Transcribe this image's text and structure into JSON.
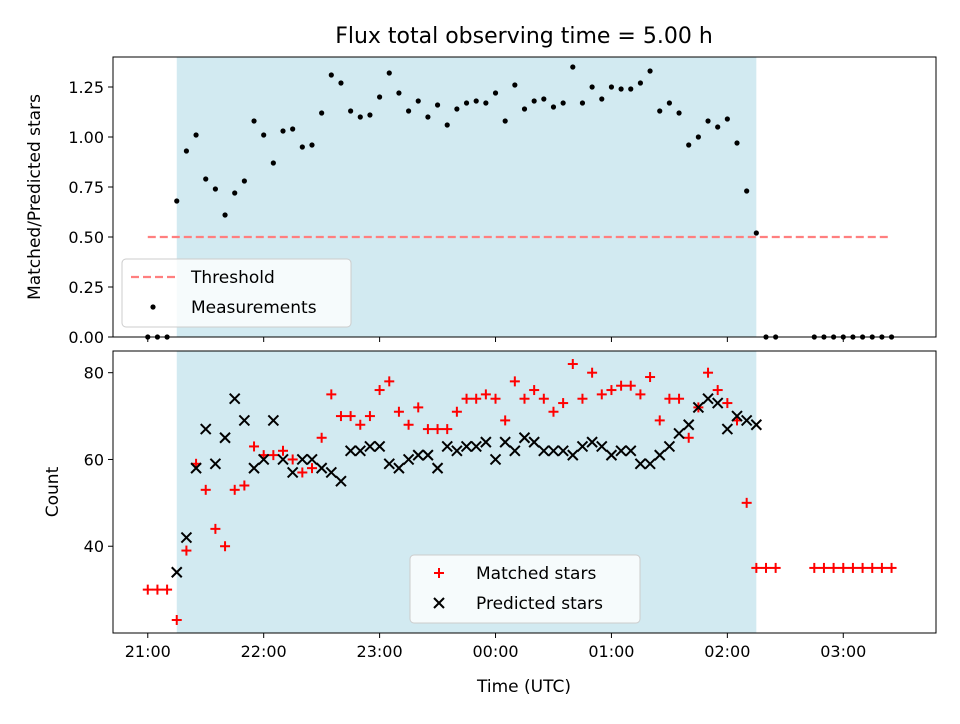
{
  "chart_data": [
    {
      "type": "scatter",
      "title": "Flux total observing time = 5.00 h",
      "xlabel": "",
      "ylabel": "Matched/Predicted stars",
      "ylim": [
        0,
        1.4
      ],
      "yticks": [
        "0.00",
        "0.25",
        "0.50",
        "0.75",
        "1.00",
        "1.25"
      ],
      "x_range": [
        "20:42",
        "03:48"
      ],
      "shaded_span": [
        "21:15",
        "02:15"
      ],
      "shade_color": "#add8e6",
      "threshold": {
        "name": "Threshold",
        "value": 0.5,
        "x": [
          "21:00",
          "03:25"
        ],
        "color": "#ff7f7f",
        "style": "dashed"
      },
      "series": [
        {
          "name": "Measurements",
          "color": "#000000",
          "points": [
            [
              "21:00",
              0.0
            ],
            [
              "21:05",
              0.0
            ],
            [
              "21:10",
              0.0
            ],
            [
              "21:15",
              0.68
            ],
            [
              "21:20",
              0.93
            ],
            [
              "21:25",
              1.01
            ],
            [
              "21:30",
              0.79
            ],
            [
              "21:35",
              0.74
            ],
            [
              "21:40",
              0.61
            ],
            [
              "21:45",
              0.72
            ],
            [
              "21:50",
              0.78
            ],
            [
              "21:55",
              1.08
            ],
            [
              "22:00",
              1.01
            ],
            [
              "22:05",
              0.87
            ],
            [
              "22:10",
              1.03
            ],
            [
              "22:15",
              1.04
            ],
            [
              "22:20",
              0.95
            ],
            [
              "22:25",
              0.96
            ],
            [
              "22:30",
              1.12
            ],
            [
              "22:35",
              1.31
            ],
            [
              "22:40",
              1.27
            ],
            [
              "22:45",
              1.13
            ],
            [
              "22:50",
              1.1
            ],
            [
              "22:55",
              1.11
            ],
            [
              "23:00",
              1.2
            ],
            [
              "23:05",
              1.32
            ],
            [
              "23:10",
              1.22
            ],
            [
              "23:15",
              1.13
            ],
            [
              "23:20",
              1.18
            ],
            [
              "23:25",
              1.1
            ],
            [
              "23:30",
              1.16
            ],
            [
              "23:35",
              1.06
            ],
            [
              "23:40",
              1.14
            ],
            [
              "23:45",
              1.17
            ],
            [
              "23:50",
              1.18
            ],
            [
              "23:55",
              1.17
            ],
            [
              "00:00",
              1.22
            ],
            [
              "00:05",
              1.08
            ],
            [
              "00:10",
              1.26
            ],
            [
              "00:15",
              1.14
            ],
            [
              "00:20",
              1.18
            ],
            [
              "00:25",
              1.19
            ],
            [
              "00:30",
              1.15
            ],
            [
              "00:35",
              1.17
            ],
            [
              "00:40",
              1.35
            ],
            [
              "00:45",
              1.17
            ],
            [
              "00:50",
              1.25
            ],
            [
              "00:55",
              1.19
            ],
            [
              "01:00",
              1.25
            ],
            [
              "01:05",
              1.24
            ],
            [
              "01:10",
              1.24
            ],
            [
              "01:15",
              1.27
            ],
            [
              "01:20",
              1.33
            ],
            [
              "01:25",
              1.13
            ],
            [
              "01:30",
              1.17
            ],
            [
              "01:35",
              1.12
            ],
            [
              "01:40",
              0.96
            ],
            [
              "01:45",
              1.0
            ],
            [
              "01:50",
              1.08
            ],
            [
              "01:55",
              1.05
            ],
            [
              "02:00",
              1.09
            ],
            [
              "02:05",
              0.97
            ],
            [
              "02:10",
              0.73
            ],
            [
              "02:15",
              0.52
            ],
            [
              "02:20",
              0.0
            ],
            [
              "02:25",
              0.0
            ],
            [
              "02:45",
              0.0
            ],
            [
              "02:50",
              0.0
            ],
            [
              "02:55",
              0.0
            ],
            [
              "03:00",
              0.0
            ],
            [
              "03:05",
              0.0
            ],
            [
              "03:10",
              0.0
            ],
            [
              "03:15",
              0.0
            ],
            [
              "03:20",
              0.0
            ],
            [
              "03:25",
              0.0
            ]
          ]
        }
      ],
      "legend": {
        "placement": "lower-left",
        "entries": [
          "Threshold",
          "Measurements"
        ]
      }
    },
    {
      "type": "scatter",
      "title": "",
      "xlabel": "Time (UTC)",
      "ylabel": "Count",
      "ylim": [
        20,
        85
      ],
      "yticks": [
        "40",
        "60",
        "80"
      ],
      "xticks": [
        "21:00",
        "22:00",
        "23:00",
        "00:00",
        "01:00",
        "02:00",
        "03:00"
      ],
      "x_range": [
        "20:42",
        "03:48"
      ],
      "shaded_span": [
        "21:15",
        "02:15"
      ],
      "series": [
        {
          "name": "Matched stars",
          "marker": "+",
          "color": "#ff0000",
          "points": [
            [
              "21:00",
              30
            ],
            [
              "21:05",
              30
            ],
            [
              "21:10",
              30
            ],
            [
              "21:15",
              23
            ],
            [
              "21:20",
              39
            ],
            [
              "21:25",
              59
            ],
            [
              "21:30",
              53
            ],
            [
              "21:35",
              44
            ],
            [
              "21:40",
              40
            ],
            [
              "21:45",
              53
            ],
            [
              "21:50",
              54
            ],
            [
              "21:55",
              63
            ],
            [
              "22:00",
              61
            ],
            [
              "22:05",
              61
            ],
            [
              "22:10",
              62
            ],
            [
              "22:15",
              60
            ],
            [
              "22:20",
              57
            ],
            [
              "22:25",
              58
            ],
            [
              "22:30",
              65
            ],
            [
              "22:35",
              75
            ],
            [
              "22:40",
              70
            ],
            [
              "22:45",
              70
            ],
            [
              "22:50",
              68
            ],
            [
              "22:55",
              70
            ],
            [
              "23:00",
              76
            ],
            [
              "23:05",
              78
            ],
            [
              "23:10",
              71
            ],
            [
              "23:15",
              68
            ],
            [
              "23:20",
              72
            ],
            [
              "23:25",
              67
            ],
            [
              "23:30",
              67
            ],
            [
              "23:35",
              67
            ],
            [
              "23:40",
              71
            ],
            [
              "23:45",
              74
            ],
            [
              "23:50",
              74
            ],
            [
              "23:55",
              75
            ],
            [
              "00:00",
              74
            ],
            [
              "00:05",
              69
            ],
            [
              "00:10",
              78
            ],
            [
              "00:15",
              74
            ],
            [
              "00:20",
              76
            ],
            [
              "00:25",
              74
            ],
            [
              "00:30",
              71
            ],
            [
              "00:35",
              73
            ],
            [
              "00:40",
              82
            ],
            [
              "00:45",
              74
            ],
            [
              "00:50",
              80
            ],
            [
              "00:55",
              75
            ],
            [
              "01:00",
              76
            ],
            [
              "01:05",
              77
            ],
            [
              "01:10",
              77
            ],
            [
              "01:15",
              75
            ],
            [
              "01:20",
              79
            ],
            [
              "01:25",
              69
            ],
            [
              "01:30",
              74
            ],
            [
              "01:35",
              74
            ],
            [
              "01:40",
              65
            ],
            [
              "01:45",
              72
            ],
            [
              "01:50",
              80
            ],
            [
              "01:55",
              76
            ],
            [
              "02:00",
              73
            ],
            [
              "02:05",
              69
            ],
            [
              "02:10",
              50
            ],
            [
              "02:15",
              35
            ],
            [
              "02:20",
              35
            ],
            [
              "02:25",
              35
            ],
            [
              "02:45",
              35
            ],
            [
              "02:50",
              35
            ],
            [
              "02:55",
              35
            ],
            [
              "03:00",
              35
            ],
            [
              "03:05",
              35
            ],
            [
              "03:10",
              35
            ],
            [
              "03:15",
              35
            ],
            [
              "03:20",
              35
            ],
            [
              "03:25",
              35
            ]
          ]
        },
        {
          "name": "Predicted stars",
          "marker": "x",
          "color": "#000000",
          "points": [
            [
              "21:15",
              34
            ],
            [
              "21:20",
              42
            ],
            [
              "21:25",
              58
            ],
            [
              "21:30",
              67
            ],
            [
              "21:35",
              59
            ],
            [
              "21:40",
              65
            ],
            [
              "21:45",
              74
            ],
            [
              "21:50",
              69
            ],
            [
              "21:55",
              58
            ],
            [
              "22:00",
              60
            ],
            [
              "22:05",
              69
            ],
            [
              "22:10",
              60
            ],
            [
              "22:15",
              57
            ],
            [
              "22:20",
              60
            ],
            [
              "22:25",
              60
            ],
            [
              "22:30",
              58
            ],
            [
              "22:35",
              57
            ],
            [
              "22:40",
              55
            ],
            [
              "22:45",
              62
            ],
            [
              "22:50",
              62
            ],
            [
              "22:55",
              63
            ],
            [
              "23:00",
              63
            ],
            [
              "23:05",
              59
            ],
            [
              "23:10",
              58
            ],
            [
              "23:15",
              60
            ],
            [
              "23:20",
              61
            ],
            [
              "23:25",
              61
            ],
            [
              "23:30",
              58
            ],
            [
              "23:35",
              63
            ],
            [
              "23:40",
              62
            ],
            [
              "23:45",
              63
            ],
            [
              "23:50",
              63
            ],
            [
              "23:55",
              64
            ],
            [
              "00:00",
              60
            ],
            [
              "00:05",
              64
            ],
            [
              "00:10",
              62
            ],
            [
              "00:15",
              65
            ],
            [
              "00:20",
              64
            ],
            [
              "00:25",
              62
            ],
            [
              "00:30",
              62
            ],
            [
              "00:35",
              62
            ],
            [
              "00:40",
              61
            ],
            [
              "00:45",
              63
            ],
            [
              "00:50",
              64
            ],
            [
              "00:55",
              63
            ],
            [
              "01:00",
              61
            ],
            [
              "01:05",
              62
            ],
            [
              "01:10",
              62
            ],
            [
              "01:15",
              59
            ],
            [
              "01:20",
              59
            ],
            [
              "01:25",
              61
            ],
            [
              "01:30",
              63
            ],
            [
              "01:35",
              66
            ],
            [
              "01:40",
              68
            ],
            [
              "01:45",
              72
            ],
            [
              "01:50",
              74
            ],
            [
              "01:55",
              73
            ],
            [
              "02:00",
              67
            ],
            [
              "02:05",
              70
            ],
            [
              "02:10",
              69
            ],
            [
              "02:15",
              68
            ]
          ]
        }
      ],
      "legend": {
        "placement": "lower-center",
        "entries": [
          "Matched stars",
          "Predicted stars"
        ]
      }
    }
  ]
}
